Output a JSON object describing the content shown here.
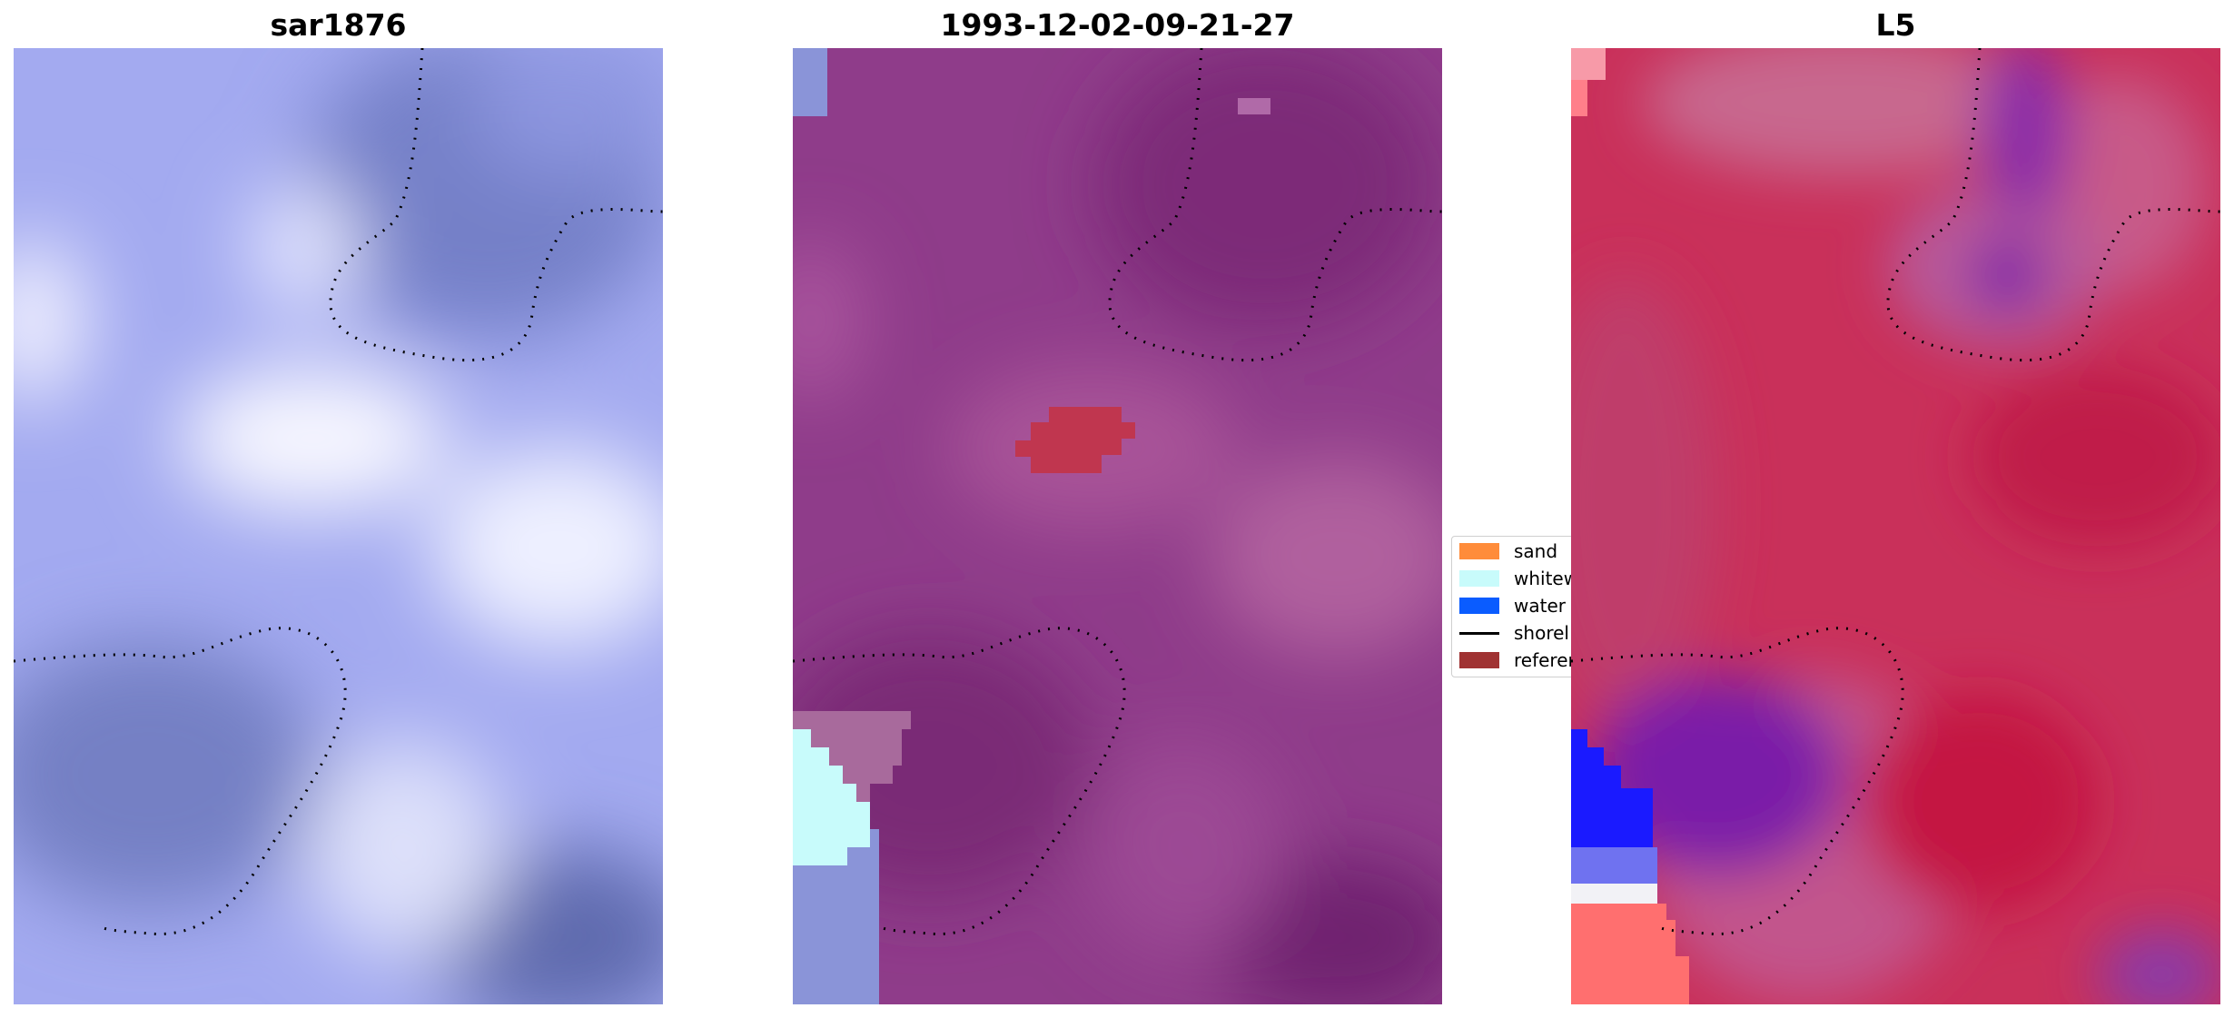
{
  "panels": [
    {
      "title": "sar1876"
    },
    {
      "title": "1993-12-02-09-21-27"
    },
    {
      "title": "L5"
    }
  ],
  "legend": {
    "items": [
      {
        "label": "sand",
        "kind": "patch",
        "color": "#ff8c3a"
      },
      {
        "label": "whitew",
        "kind": "patch",
        "color": "#c8fbfb"
      },
      {
        "label": "water",
        "kind": "patch",
        "color": "#0a5cff"
      },
      {
        "label": "shorel",
        "kind": "line",
        "color": "#000000"
      },
      {
        "label": "referen",
        "kind": "patch",
        "color": "#a03232"
      }
    ]
  },
  "colors": {
    "sar_base": "#9aa2ec",
    "sar_dark": "#6b78c4",
    "sar_light": "#eef0ff",
    "overlay_base": "#923e8e",
    "overlay_dark": "#7d2c78",
    "overlay_light": "#b05c9c",
    "reference": "#c0364f",
    "whitewater": "#c8fbfb",
    "water_tint": "#8a94d8",
    "l5_base": "#c8284f",
    "l5_purple": "#7a1ea8",
    "l5_blue": "#1a1aff",
    "l5_pink": "#ff7070",
    "shoreline": "#000000"
  }
}
